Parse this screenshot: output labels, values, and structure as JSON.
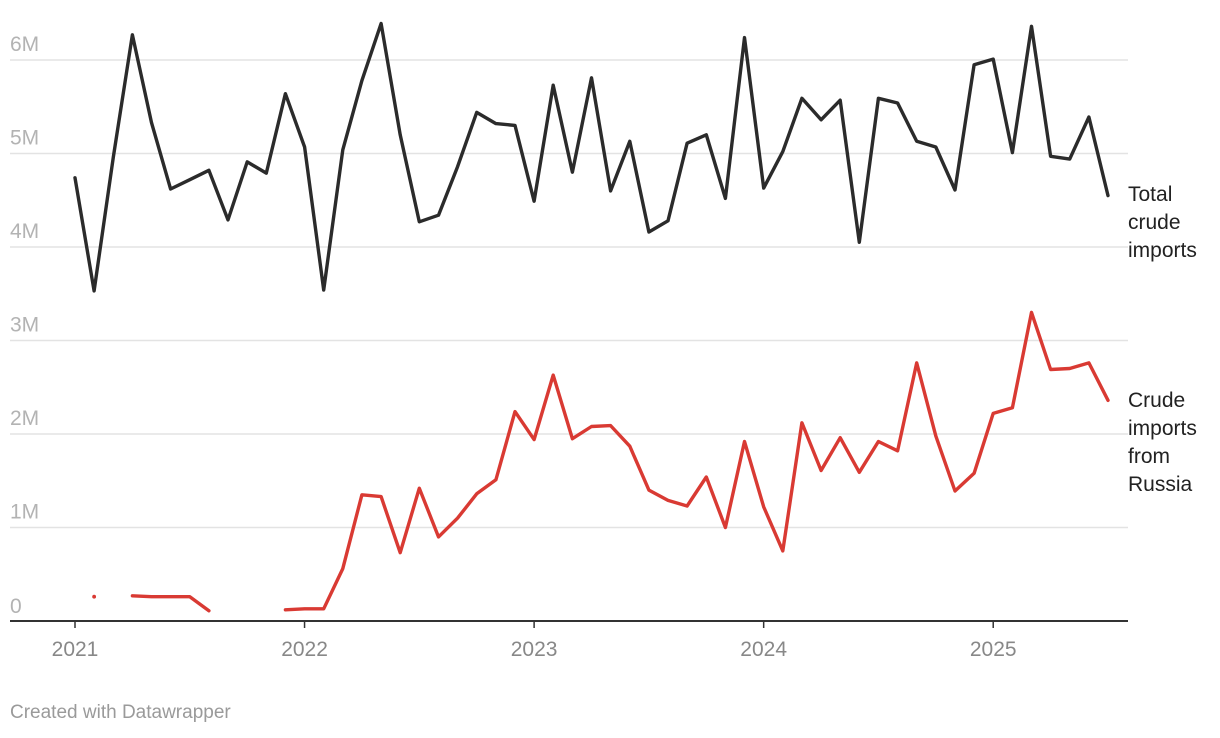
{
  "footer": {
    "credit": "Created with Datawrapper"
  },
  "chart_data": {
    "type": "line",
    "title": "",
    "xlabel": "",
    "ylabel": "",
    "x_range": [
      "2021-01",
      "2025-07"
    ],
    "ylim": [
      0,
      6000000
    ],
    "y_ticks": [
      0,
      1000000,
      2000000,
      3000000,
      4000000,
      5000000,
      6000000
    ],
    "y_tick_labels": [
      "0",
      "1M",
      "2M",
      "3M",
      "4M",
      "5M",
      "6M"
    ],
    "x_ticks": [
      "2021-01",
      "2022-01",
      "2023-01",
      "2024-01",
      "2025-01"
    ],
    "x_tick_labels": [
      "2021",
      "2022",
      "2023",
      "2024",
      "2025"
    ],
    "grid": true,
    "legend": "direct labels at right end of lines",
    "series": [
      {
        "name": "Total crude imports",
        "color": "#2b2b2b",
        "x": [
          "2021-01",
          "2021-02",
          "2021-03",
          "2021-04",
          "2021-05",
          "2021-06",
          "2021-07",
          "2021-08",
          "2021-09",
          "2021-10",
          "2021-11",
          "2021-12",
          "2022-01",
          "2022-02",
          "2022-03",
          "2022-04",
          "2022-05",
          "2022-06",
          "2022-07",
          "2022-08",
          "2022-09",
          "2022-10",
          "2022-11",
          "2022-12",
          "2023-01",
          "2023-02",
          "2023-03",
          "2023-04",
          "2023-05",
          "2023-06",
          "2023-07",
          "2023-08",
          "2023-09",
          "2023-10",
          "2023-11",
          "2023-12",
          "2024-01",
          "2024-02",
          "2024-03",
          "2024-04",
          "2024-05",
          "2024-06",
          "2024-07",
          "2024-08",
          "2024-09",
          "2024-10",
          "2024-11",
          "2024-12",
          "2025-01",
          "2025-02",
          "2025-03",
          "2025-04",
          "2025-05",
          "2025-06",
          "2025-07"
        ],
        "values": [
          4740000,
          3530000,
          4960000,
          6270000,
          5330000,
          4620000,
          4720000,
          4820000,
          4290000,
          4910000,
          4790000,
          5640000,
          5070000,
          3540000,
          5040000,
          5780000,
          6390000,
          5200000,
          4270000,
          4340000,
          4860000,
          5440000,
          5320000,
          5300000,
          4490000,
          5730000,
          4800000,
          5810000,
          4600000,
          5130000,
          4160000,
          4280000,
          5110000,
          5200000,
          4520000,
          6240000,
          4630000,
          5020000,
          5590000,
          5360000,
          5570000,
          4050000,
          5590000,
          5540000,
          5130000,
          5070000,
          4610000,
          5950000,
          6010000,
          5010000,
          6360000,
          4970000,
          4940000,
          5390000,
          4550000
        ]
      },
      {
        "name": "Crude imports from Russia",
        "color": "#d93a33",
        "x": [
          "2021-01",
          "2021-02",
          "2021-03",
          "2021-04",
          "2021-05",
          "2021-06",
          "2021-07",
          "2021-08",
          "2021-09",
          "2021-10",
          "2021-11",
          "2021-12",
          "2022-01",
          "2022-02",
          "2022-03",
          "2022-04",
          "2022-05",
          "2022-06",
          "2022-07",
          "2022-08",
          "2022-09",
          "2022-10",
          "2022-11",
          "2022-12",
          "2023-01",
          "2023-02",
          "2023-03",
          "2023-04",
          "2023-05",
          "2023-06",
          "2023-07",
          "2023-08",
          "2023-09",
          "2023-10",
          "2023-11",
          "2023-12",
          "2024-01",
          "2024-02",
          "2024-03",
          "2024-04",
          "2024-05",
          "2024-06",
          "2024-07",
          "2024-08",
          "2024-09",
          "2024-10",
          "2024-11",
          "2024-12",
          "2025-01",
          "2025-02",
          "2025-03",
          "2025-04",
          "2025-05",
          "2025-06",
          "2025-07"
        ],
        "values": [
          null,
          260000,
          null,
          270000,
          260000,
          260000,
          260000,
          110000,
          null,
          null,
          null,
          120000,
          130000,
          130000,
          560000,
          1350000,
          1330000,
          730000,
          1420000,
          900000,
          1100000,
          1360000,
          1510000,
          2240000,
          1940000,
          2630000,
          1950000,
          2080000,
          2090000,
          1870000,
          1400000,
          1290000,
          1230000,
          1540000,
          1000000,
          1920000,
          1220000,
          750000,
          2120000,
          1610000,
          1960000,
          1590000,
          1920000,
          1820000,
          2760000,
          1980000,
          1390000,
          1580000,
          2220000,
          2280000,
          3300000,
          2690000,
          2700000,
          2760000,
          2360000
        ]
      }
    ]
  }
}
